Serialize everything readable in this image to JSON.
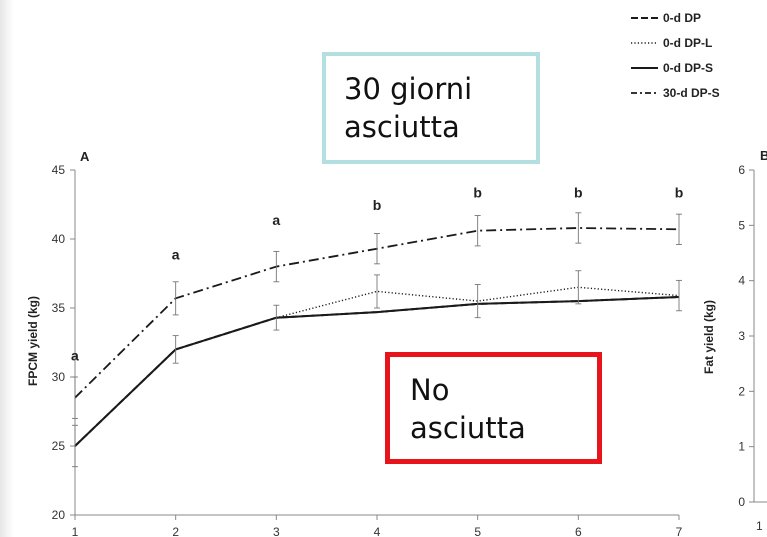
{
  "chart_data": {
    "type": "line",
    "panel_label": "A",
    "ylabel": "FPCM yield (kg)",
    "xlabel": "",
    "categories": [
      1,
      2,
      3,
      4,
      5,
      6,
      7
    ],
    "ylim": [
      20,
      45
    ],
    "yticks": [
      20,
      25,
      30,
      35,
      40,
      45
    ],
    "grid": false,
    "legend_position": "top-right",
    "series": [
      {
        "name": "0-d DP",
        "style": "dashed",
        "values": [
          25.0,
          32.0,
          34.3,
          34.7,
          35.3,
          35.5,
          35.8
        ]
      },
      {
        "name": "0-d DP-L",
        "style": "dotted",
        "values": [
          25.0,
          32.0,
          34.3,
          36.2,
          35.5,
          36.5,
          35.9
        ]
      },
      {
        "name": "0-d DP-S",
        "style": "solid",
        "values": [
          25.0,
          32.0,
          34.3,
          34.7,
          35.3,
          35.5,
          35.8
        ]
      },
      {
        "name": "30-d DP-S",
        "style": "dash-dot",
        "values": [
          28.5,
          35.7,
          38.0,
          39.3,
          40.6,
          40.8,
          40.7
        ]
      }
    ],
    "error_bars": [
      {
        "values": [
          25.0,
          32.0,
          34.3,
          36.2,
          35.5,
          36.5,
          35.9
        ],
        "err": [
          1.5,
          1.0,
          0.9,
          1.2,
          1.2,
          1.2,
          1.1
        ]
      },
      {
        "values": [
          28.5,
          35.7,
          38.0,
          39.3,
          40.6,
          40.8,
          40.7
        ],
        "err": [
          1.5,
          1.2,
          1.1,
          1.1,
          1.1,
          1.1,
          1.1
        ]
      }
    ],
    "significance_labels": [
      "a",
      "a",
      "a",
      "b",
      "b",
      "b",
      "b"
    ],
    "significance_y": [
      31.2,
      38.5,
      41.0,
      42.1,
      43.0,
      43.0,
      43.0
    ],
    "secondary_panel": {
      "panel_label": "B",
      "ylabel": "Fat yield (kg)",
      "ylim": [
        0,
        6
      ],
      "yticks": [
        0,
        1,
        2,
        3,
        4,
        5,
        6
      ],
      "first_category": 1
    }
  },
  "annotations": {
    "dry_period_line1": "30 giorni",
    "dry_period_line2": "asciutta",
    "no_dry_line1": "No",
    "no_dry_line2": "asciutta"
  },
  "colors": {
    "series_line": "#1a1a1a",
    "dry_box_border": "#b4dfe0",
    "no_dry_box_border": "#e8141c"
  }
}
